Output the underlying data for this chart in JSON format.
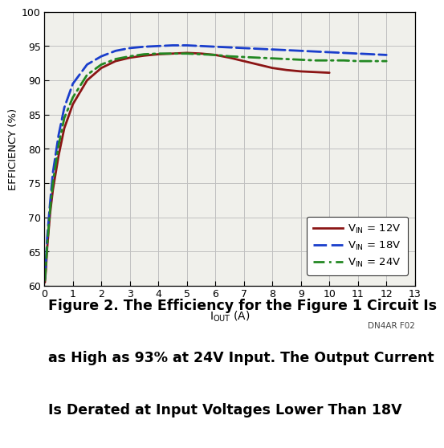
{
  "ylabel": "EFFICIENCY (%)",
  "xlim": [
    0,
    13
  ],
  "ylim": [
    60,
    100
  ],
  "yticks": [
    60,
    65,
    70,
    75,
    80,
    85,
    90,
    95,
    100
  ],
  "xticks": [
    0,
    1,
    2,
    3,
    4,
    5,
    6,
    7,
    8,
    9,
    10,
    11,
    12,
    13
  ],
  "grid_color": "#c0c0c0",
  "bg_color": "#f0f0eb",
  "watermark": "DN4AR F02",
  "caption_line1": "Figure 2. The Efficiency for the Figure 1 Circuit Is",
  "caption_line2": "as High as 93% at 24V Input. The Output Current",
  "caption_line3": "Is Derated at Input Voltages Lower Than 18V",
  "series": [
    {
      "label_prefix": "V",
      "label_sub": "IN",
      "label_suffix": " = 12V",
      "color": "#8b1515",
      "linestyle": "solid",
      "linewidth": 2.0,
      "x": [
        0.02,
        0.05,
        0.1,
        0.2,
        0.3,
        0.5,
        0.7,
        1.0,
        1.5,
        2.0,
        2.5,
        3.0,
        3.5,
        4.0,
        4.5,
        5.0,
        5.5,
        6.0,
        6.5,
        7.0,
        7.5,
        8.0,
        8.5,
        9.0,
        9.5,
        10.0
      ],
      "y": [
        60.5,
        62.0,
        65.5,
        70.5,
        74.0,
        79.0,
        83.0,
        86.5,
        90.0,
        91.8,
        92.8,
        93.3,
        93.6,
        93.8,
        93.9,
        94.0,
        93.9,
        93.7,
        93.3,
        92.8,
        92.3,
        91.8,
        91.5,
        91.3,
        91.2,
        91.1
      ]
    },
    {
      "label_prefix": "V",
      "label_sub": "IN",
      "label_suffix": " = 18V",
      "color": "#1a3ecc",
      "linestyle": "dashed",
      "linewidth": 2.0,
      "x": [
        0.02,
        0.05,
        0.1,
        0.2,
        0.3,
        0.5,
        0.7,
        1.0,
        1.5,
        2.0,
        2.5,
        3.0,
        3.5,
        4.0,
        4.5,
        5.0,
        5.5,
        6.0,
        6.5,
        7.0,
        7.5,
        8.0,
        8.5,
        9.0,
        9.5,
        10.0,
        10.5,
        11.0,
        11.5,
        12.0
      ],
      "y": [
        61.0,
        63.0,
        67.0,
        72.0,
        76.5,
        82.0,
        86.0,
        89.5,
        92.3,
        93.5,
        94.3,
        94.7,
        94.9,
        95.0,
        95.1,
        95.1,
        95.0,
        94.9,
        94.8,
        94.7,
        94.6,
        94.5,
        94.4,
        94.3,
        94.2,
        94.1,
        94.0,
        93.9,
        93.8,
        93.7
      ]
    },
    {
      "label_prefix": "V",
      "label_sub": "IN",
      "label_suffix": " = 24V",
      "color": "#228822",
      "linestyle": "dashed",
      "linewidth": 2.0,
      "x": [
        0.02,
        0.05,
        0.1,
        0.2,
        0.3,
        0.5,
        0.7,
        1.0,
        1.5,
        2.0,
        2.5,
        3.0,
        3.5,
        4.0,
        4.5,
        5.0,
        5.5,
        6.0,
        6.5,
        7.0,
        7.5,
        8.0,
        8.5,
        9.0,
        9.5,
        10.0,
        10.5,
        11.0,
        11.5,
        12.0
      ],
      "y": [
        60.8,
        62.5,
        66.0,
        71.0,
        75.0,
        80.5,
        84.5,
        87.5,
        90.8,
        92.3,
        93.1,
        93.5,
        93.8,
        93.9,
        93.9,
        93.9,
        93.8,
        93.7,
        93.5,
        93.4,
        93.3,
        93.2,
        93.1,
        93.0,
        92.9,
        92.9,
        92.9,
        92.8,
        92.8,
        92.8
      ]
    }
  ]
}
